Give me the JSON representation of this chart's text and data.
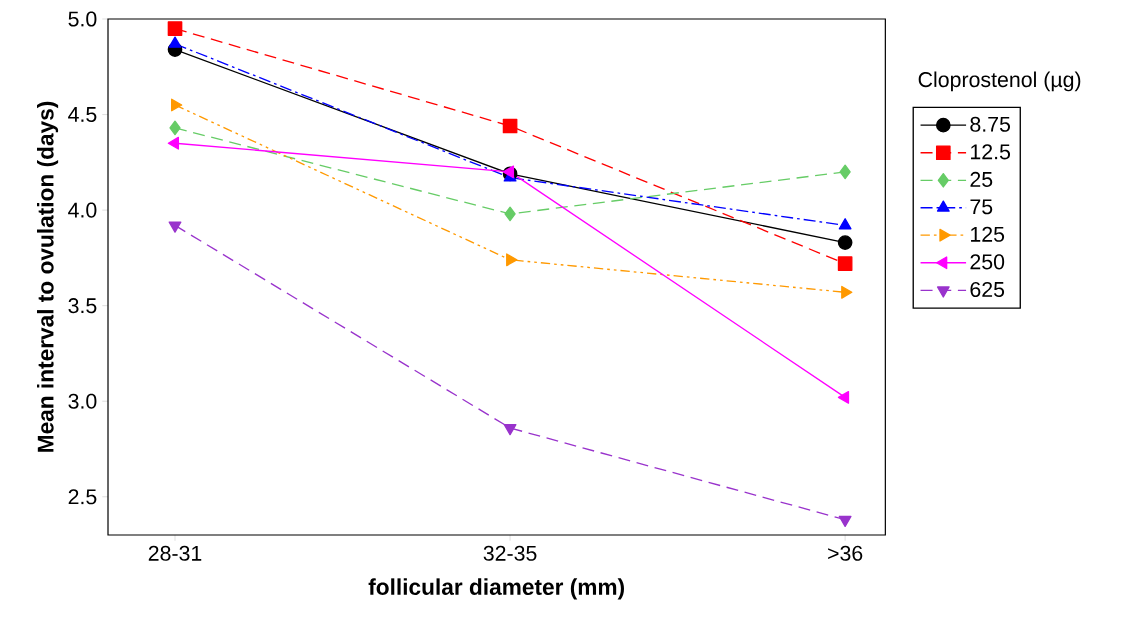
{
  "chart_data": {
    "type": "line",
    "xlabel": "follicular diameter (mm)",
    "ylabel": "Mean interval to ovulation (days)",
    "legend_title": "Cloprostenol (µg)",
    "legend": "right",
    "grid": false,
    "categories": [
      "28-31",
      "32-35",
      ">36"
    ],
    "ylim": [
      2.3,
      5.0
    ],
    "yticks": [
      {
        "value": 2.5,
        "label": "2.5"
      },
      {
        "value": 3.0,
        "label": "3.0"
      },
      {
        "value": 3.5,
        "label": "3.5"
      },
      {
        "value": 4.0,
        "label": "4.0"
      },
      {
        "value": 4.5,
        "label": "4.5"
      },
      {
        "value": 5.0,
        "label": "5.0"
      }
    ],
    "series": [
      {
        "name": "8.75",
        "color": "#000000",
        "marker": "circle",
        "line_style": "solid",
        "values": [
          4.84,
          4.19,
          3.83
        ]
      },
      {
        "name": "12.5",
        "color": "#ff0000",
        "marker": "square",
        "line_style": "dashed",
        "values": [
          4.95,
          4.44,
          3.72
        ]
      },
      {
        "name": "25",
        "color": "#66cc66",
        "marker": "diamond",
        "line_style": "dashed",
        "values": [
          4.43,
          3.98,
          4.2
        ]
      },
      {
        "name": "75",
        "color": "#0000ff",
        "marker": "triangle",
        "line_style": "dashdot",
        "values": [
          4.87,
          4.17,
          3.92
        ]
      },
      {
        "name": "125",
        "color": "#ff9900",
        "marker": "triangle-right",
        "line_style": "dashdotdot",
        "values": [
          4.55,
          3.74,
          3.57
        ]
      },
      {
        "name": "250",
        "color": "#ff00ff",
        "marker": "triangle-left",
        "line_style": "solid",
        "values": [
          4.35,
          4.2,
          3.02
        ]
      },
      {
        "name": "625",
        "color": "#9933cc",
        "marker": "triangle-down",
        "line_style": "dashed",
        "values": [
          3.92,
          2.86,
          2.38
        ]
      }
    ]
  }
}
